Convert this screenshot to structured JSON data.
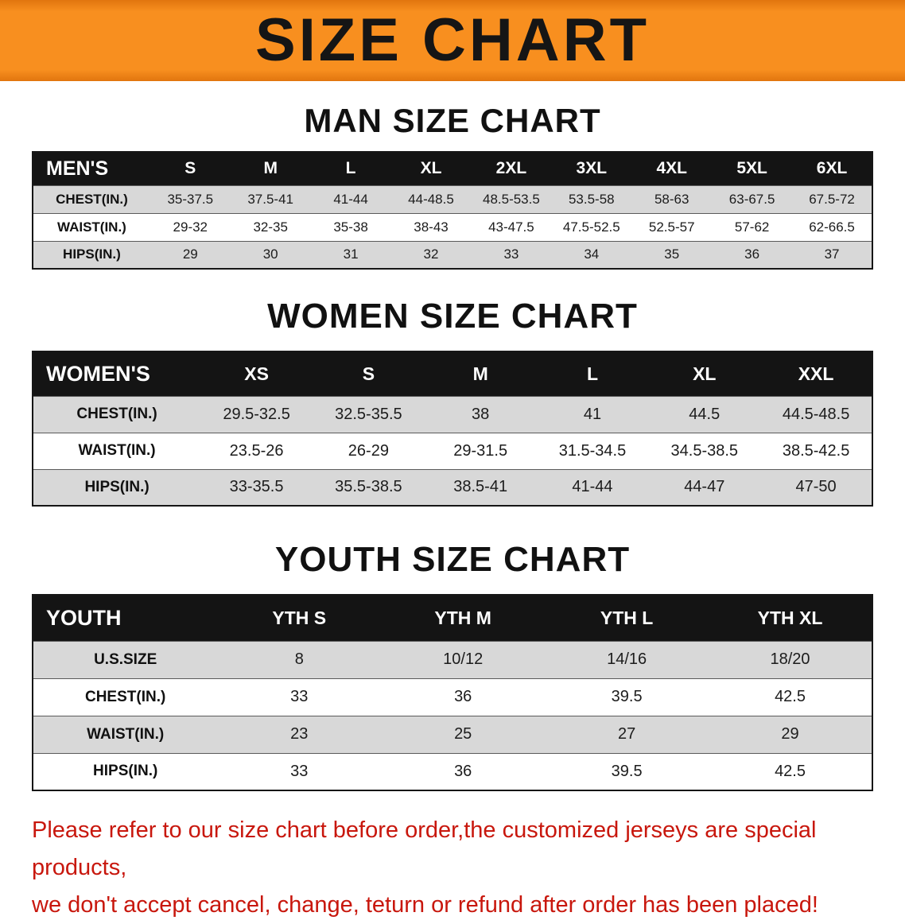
{
  "banner": {
    "title": "SIZE CHART",
    "background_color": "#f88f1f",
    "text_color": "#151515"
  },
  "men": {
    "heading": "MAN SIZE CHART",
    "table": {
      "label": "MEN'S",
      "columns": [
        "S",
        "M",
        "L",
        "XL",
        "2XL",
        "3XL",
        "4XL",
        "5XL",
        "6XL"
      ],
      "rows": [
        {
          "label": "CHEST(IN.)",
          "values": [
            "35-37.5",
            "37.5-41",
            "41-44",
            "44-48.5",
            "48.5-53.5",
            "53.5-58",
            "58-63",
            "63-67.5",
            "67.5-72"
          ]
        },
        {
          "label": "WAIST(IN.)",
          "values": [
            "29-32",
            "32-35",
            "35-38",
            "38-43",
            "43-47.5",
            "47.5-52.5",
            "52.5-57",
            "57-62",
            "62-66.5"
          ]
        },
        {
          "label": "HIPS(IN.)",
          "values": [
            "29",
            "30",
            "31",
            "32",
            "33",
            "34",
            "35",
            "36",
            "37"
          ]
        }
      ]
    }
  },
  "women": {
    "heading": "WOMEN SIZE CHART",
    "table": {
      "label": "WOMEN'S",
      "columns": [
        "XS",
        "S",
        "M",
        "L",
        "XL",
        "XXL"
      ],
      "rows": [
        {
          "label": "CHEST(IN.)",
          "values": [
            "29.5-32.5",
            "32.5-35.5",
            "38",
            "41",
            "44.5",
            "44.5-48.5"
          ]
        },
        {
          "label": "WAIST(IN.)",
          "values": [
            "23.5-26",
            "26-29",
            "29-31.5",
            "31.5-34.5",
            "34.5-38.5",
            "38.5-42.5"
          ]
        },
        {
          "label": "HIPS(IN.)",
          "values": [
            "33-35.5",
            "35.5-38.5",
            "38.5-41",
            "41-44",
            "44-47",
            "47-50"
          ]
        }
      ]
    }
  },
  "youth": {
    "heading": "YOUTH SIZE CHART",
    "table": {
      "label": "YOUTH",
      "columns": [
        "YTH S",
        "YTH M",
        "YTH L",
        "YTH XL"
      ],
      "rows": [
        {
          "label": "U.S.SIZE",
          "values": [
            "8",
            "10/12",
            "14/16",
            "18/20"
          ]
        },
        {
          "label": "CHEST(IN.)",
          "values": [
            "33",
            "36",
            "39.5",
            "42.5"
          ]
        },
        {
          "label": "WAIST(IN.)",
          "values": [
            "23",
            "25",
            "27",
            "29"
          ]
        },
        {
          "label": "HIPS(IN.)",
          "values": [
            "33",
            "36",
            "39.5",
            "42.5"
          ]
        }
      ]
    }
  },
  "disclaimer": {
    "line1": "Please refer to our size chart before order,the customized jerseys are special products,",
    "line2": "we don't accept cancel, change, teturn or refund after order has been placed!",
    "text_color": "#c8170d"
  }
}
